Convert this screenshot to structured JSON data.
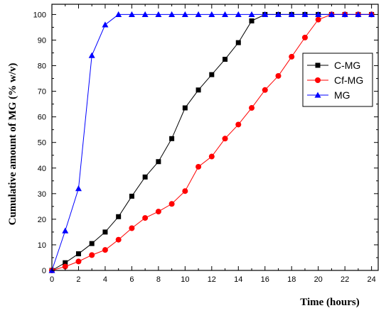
{
  "chart_data": {
    "type": "line",
    "xlabel": "Time (hours)",
    "ylabel": "Cumulative amount of MG (% w/v)",
    "xlim": [
      0,
      24.5
    ],
    "ylim": [
      0,
      104
    ],
    "xticks": [
      0,
      2,
      4,
      6,
      8,
      10,
      12,
      14,
      16,
      18,
      20,
      22,
      24
    ],
    "yticks": [
      0,
      10,
      20,
      30,
      40,
      50,
      60,
      70,
      80,
      90,
      100
    ],
    "legend_position": "top-right",
    "series": [
      {
        "name": "C-MG",
        "color": "#000000",
        "marker": "square",
        "x": [
          0,
          1,
          2,
          3,
          4,
          5,
          6,
          7,
          8,
          9,
          10,
          11,
          12,
          13,
          14,
          15,
          16,
          17,
          18,
          19,
          20,
          21,
          22,
          23,
          24
        ],
        "y": [
          0,
          3,
          6.5,
          10.5,
          15,
          21,
          29,
          36.5,
          42.5,
          51.5,
          63.5,
          70.5,
          76.5,
          82.5,
          89,
          97.5,
          100,
          100,
          100,
          100,
          100,
          100,
          100,
          100,
          100
        ]
      },
      {
        "name": "Cf-MG",
        "color": "#ff0000",
        "marker": "circle",
        "x": [
          0,
          1,
          2,
          3,
          4,
          5,
          6,
          7,
          8,
          9,
          10,
          11,
          12,
          13,
          14,
          15,
          16,
          17,
          18,
          19,
          20,
          21,
          22,
          23,
          24
        ],
        "y": [
          0,
          1.5,
          3.5,
          6,
          8,
          12,
          16.5,
          20.5,
          23,
          26,
          31,
          40.5,
          44.5,
          51.5,
          57,
          63.5,
          70.5,
          76,
          83.5,
          91,
          98,
          100,
          100,
          100,
          100
        ]
      },
      {
        "name": "MG",
        "color": "#0000ff",
        "marker": "triangle",
        "x": [
          0,
          1,
          2,
          3,
          4,
          5,
          6,
          7,
          8,
          9,
          10,
          11,
          12,
          13,
          14,
          15,
          16,
          17,
          18,
          19,
          20,
          21,
          22,
          23,
          24
        ],
        "y": [
          0,
          15.5,
          32,
          84,
          96,
          100,
          100,
          100,
          100,
          100,
          100,
          100,
          100,
          100,
          100,
          100,
          100,
          100,
          100,
          100,
          100,
          100,
          100,
          100,
          100
        ]
      }
    ]
  }
}
